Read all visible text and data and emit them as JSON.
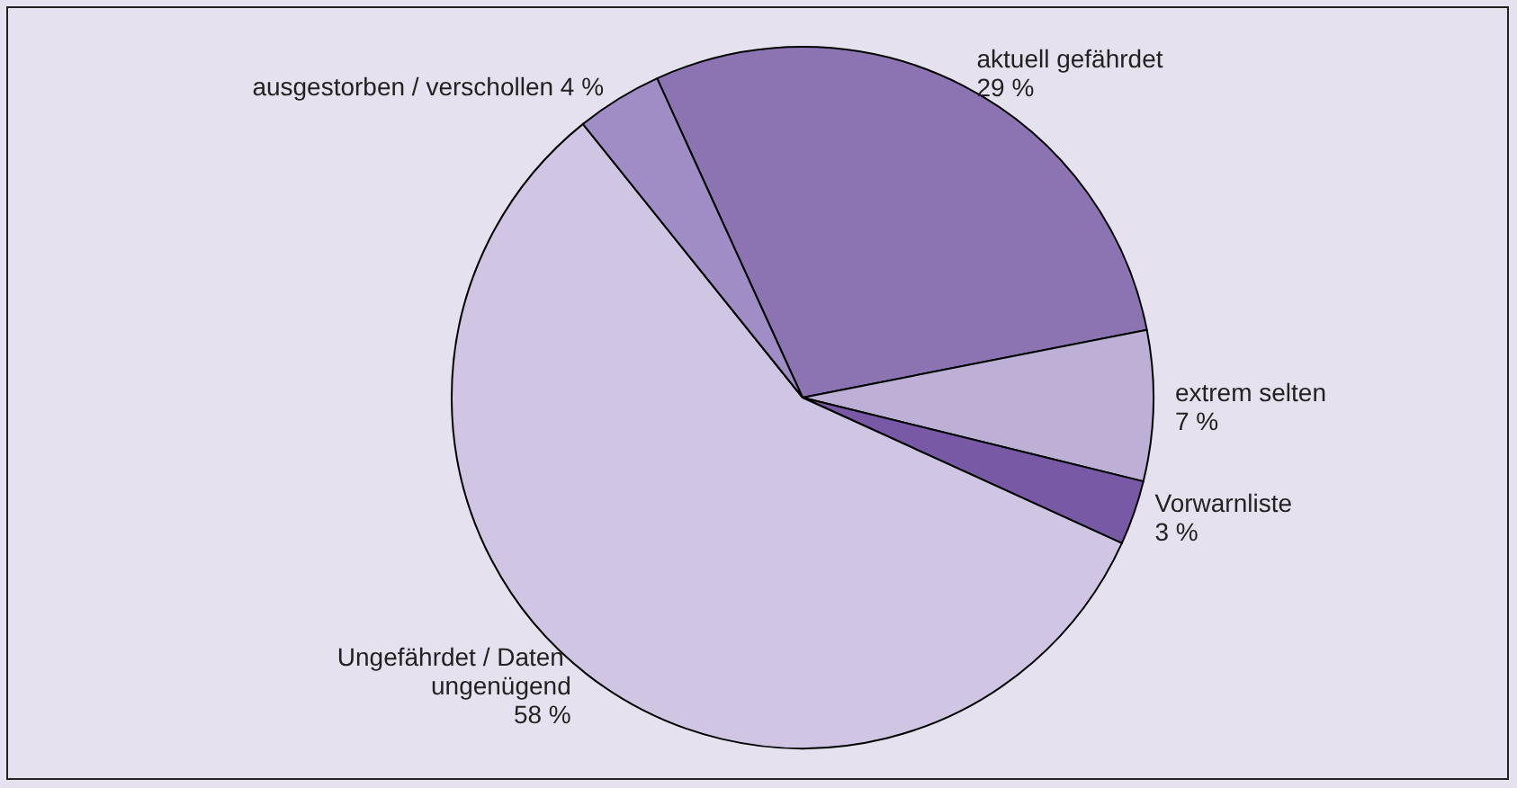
{
  "chart_data": {
    "type": "pie",
    "categories": [
      "aktuell gefährdet",
      "extrem selten",
      "Vorwarnliste",
      "Ungefährdet / Daten ungenügend",
      "ausgestorben / verschollen"
    ],
    "values": [
      29,
      7,
      3,
      58,
      4
    ],
    "colors": [
      "#8c74b3",
      "#bdafd6",
      "#7759a6",
      "#d0c6e3",
      "#a08dc5"
    ],
    "value_labels": [
      "29 %",
      "7 %",
      "3 %",
      "58 %",
      "4 %"
    ],
    "legend": false
  }
}
